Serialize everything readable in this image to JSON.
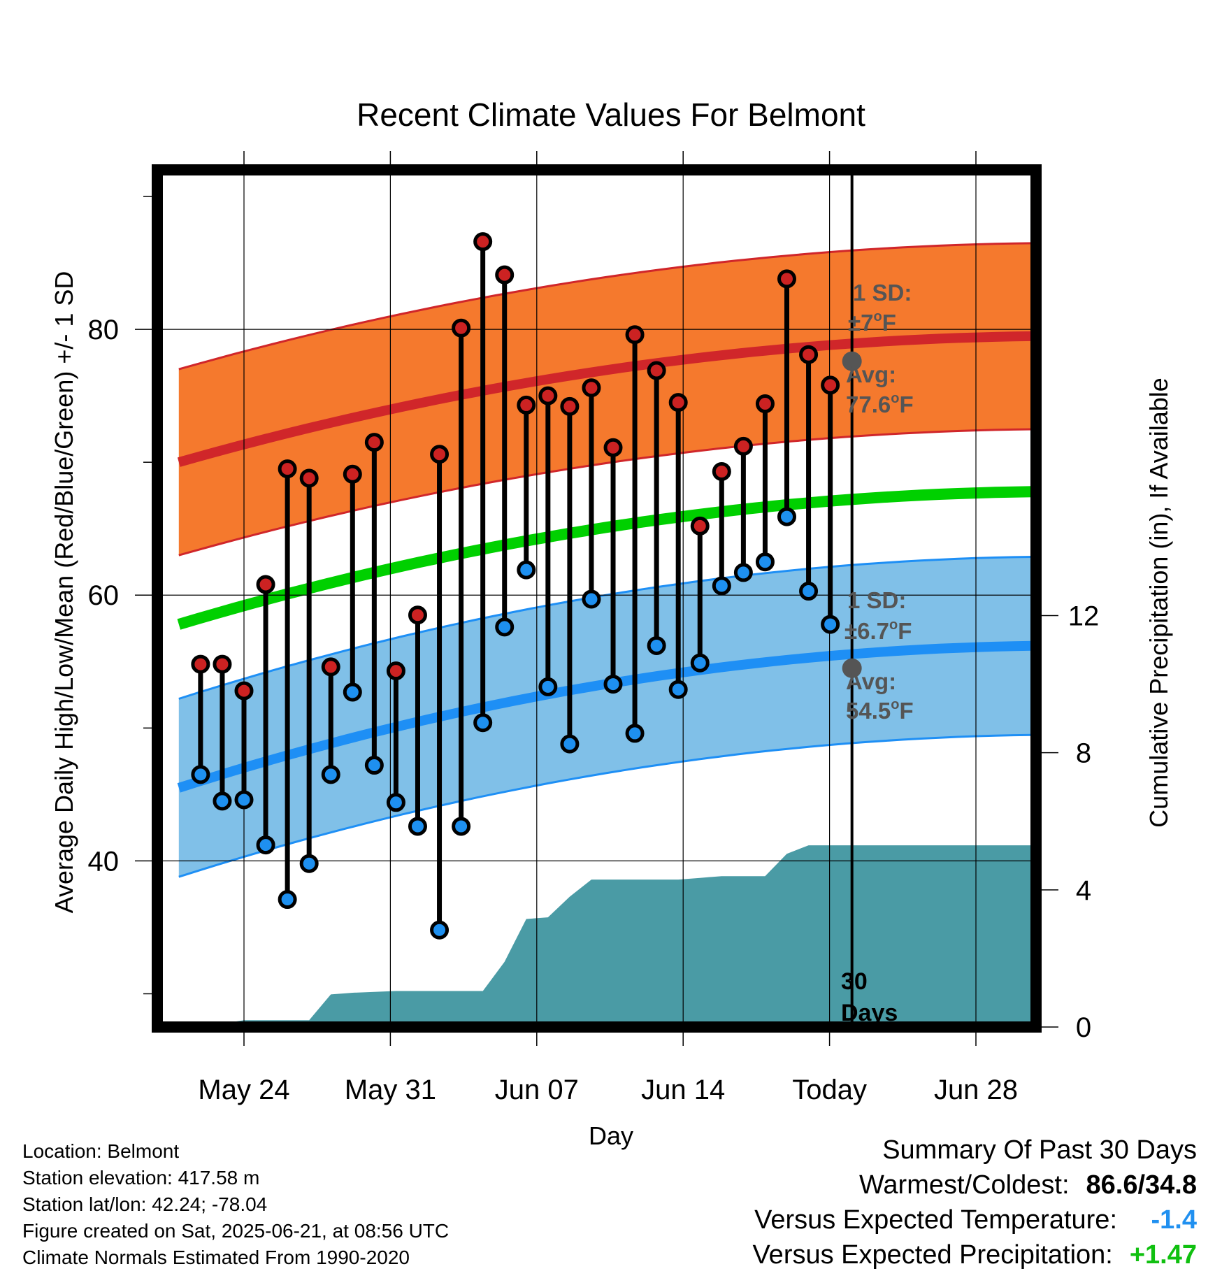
{
  "chart_data": {
    "type": "line",
    "title": "Recent Climate Values For Belmont",
    "xlabel": "Day",
    "ylabel_left": "Average Daily High/Low/Mean (Red/Blue/Green) +/- 1 SD",
    "ylabel_right": "Cumulative Precipitation (in), If Available",
    "x_ticks": [
      "May 24",
      "May 31",
      "Jun 07",
      "Jun 14",
      "Today",
      "Jun 28"
    ],
    "y_ticks_left": [
      "40",
      "60",
      "80"
    ],
    "y_ticks_right": [
      "0",
      "4",
      "8",
      "12"
    ],
    "ylim_left": [
      27.5,
      92
    ],
    "ylim_right": [
      0,
      25
    ],
    "days": [
      "May 22",
      "May 23",
      "May 24",
      "May 25",
      "May 26",
      "May 27",
      "May 28",
      "May 29",
      "May 30",
      "May 31",
      "Jun 01",
      "Jun 02",
      "Jun 03",
      "Jun 04",
      "Jun 05",
      "Jun 06",
      "Jun 07",
      "Jun 08",
      "Jun 09",
      "Jun 10",
      "Jun 11",
      "Jun 12",
      "Jun 13",
      "Jun 14",
      "Jun 15",
      "Jun 16",
      "Jun 17",
      "Jun 18",
      "Jun 19",
      "Jun 20"
    ],
    "highs": [
      54.8,
      54.8,
      52.8,
      60.8,
      69.5,
      68.8,
      54.6,
      69.1,
      71.5,
      54.3,
      58.5,
      70.6,
      80.1,
      86.6,
      84.1,
      74.3,
      75.0,
      74.2,
      75.6,
      71.1,
      79.6,
      76.9,
      74.5,
      65.2,
      69.3,
      71.2,
      74.4,
      83.8,
      78.1,
      75.8
    ],
    "lows": [
      46.5,
      44.5,
      44.6,
      41.2,
      37.1,
      39.8,
      46.5,
      52.7,
      47.2,
      44.4,
      42.6,
      34.8,
      42.6,
      50.4,
      57.6,
      61.9,
      53.1,
      48.8,
      59.7,
      53.3,
      49.6,
      56.2,
      52.9,
      54.9,
      60.7,
      61.7,
      62.5,
      65.9,
      60.3,
      57.8
    ],
    "normal_high": {
      "x": [
        "May 21",
        "Jul 01"
      ],
      "values": [
        70.0,
        79.5
      ],
      "sd": 7
    },
    "normal_low": {
      "x": [
        "May 21",
        "Jul 01"
      ],
      "values": [
        45.5,
        56.2
      ],
      "sd": 6.7
    },
    "normal_mean": {
      "x": [
        "May 21",
        "Jul 01"
      ],
      "values": [
        57.8,
        67.8
      ]
    },
    "precip_cumulative": {
      "x": [
        "May 21",
        "May 22",
        "May 23",
        "May 24",
        "May 25",
        "May 26",
        "May 27",
        "May 28",
        "May 29",
        "May 31",
        "Jun 02",
        "Jun 04",
        "Jun 05",
        "Jun 06",
        "Jun 07",
        "Jun 08",
        "Jun 09",
        "Jun 10",
        "Jun 11",
        "Jun 12",
        "Jun 13",
        "Jun 14",
        "Jun 15",
        "Jun 16",
        "Jun 17",
        "Jun 18",
        "Jun 19",
        "Jun 20",
        "Jun 21",
        "Jul 01"
      ],
      "values": [
        0,
        0.05,
        0.1,
        0.2,
        0.2,
        0.2,
        0.2,
        0.95,
        1.0,
        1.05,
        1.05,
        1.05,
        1.9,
        3.15,
        3.2,
        3.8,
        4.3,
        4.3,
        4.3,
        4.3,
        4.3,
        4.35,
        4.4,
        4.4,
        4.4,
        5.05,
        5.3,
        5.3,
        5.3,
        5.3
      ]
    },
    "today": "Jun 21",
    "window_label": [
      "30",
      "Days"
    ],
    "annotations": {
      "high": {
        "sd_label": "1 SD:",
        "sd_value": "±7",
        "sd_unit": "F",
        "avg_label": "Avg:",
        "avg_value": "77.6",
        "avg_unit": "F",
        "avg": 77.6
      },
      "low": {
        "sd_label": "1 SD:",
        "sd_value": "±6.7",
        "sd_unit": "F",
        "avg_label": "Avg:",
        "avg_value": "54.5",
        "avg_unit": "F",
        "avg": 54.5
      }
    },
    "colors": {
      "high_band": "#f5792d",
      "high_line": "#d0262a",
      "low_band": "#80c0e8",
      "low_line": "#1e8ff5",
      "mean_line": "#00d000",
      "precip": "#4a9ba5",
      "high_marker": "#cc2222",
      "low_marker": "#1e90f0",
      "today_marker": "#555555"
    }
  },
  "footer": {
    "location": "Location: Belmont",
    "elevation": "Station elevation: 417.58 m",
    "latlon": "Station lat/lon: 42.24; -78.04",
    "created": "Figure created on Sat, 2025-06-21, at 08:56 UTC",
    "normals": "Climate Normals Estimated From 1990-2020"
  },
  "summary": {
    "heading": "Summary Of Past 30 Days",
    "warmest_label": "Warmest/Coldest:",
    "warmest_value": "86.6/34.8",
    "temp_label": "Versus Expected Temperature:",
    "temp_value": "-1.4",
    "temp_color": "#2090f0",
    "precip_label": "Versus Expected Precipitation:",
    "precip_value": "+1.47",
    "precip_color": "#10c010"
  }
}
